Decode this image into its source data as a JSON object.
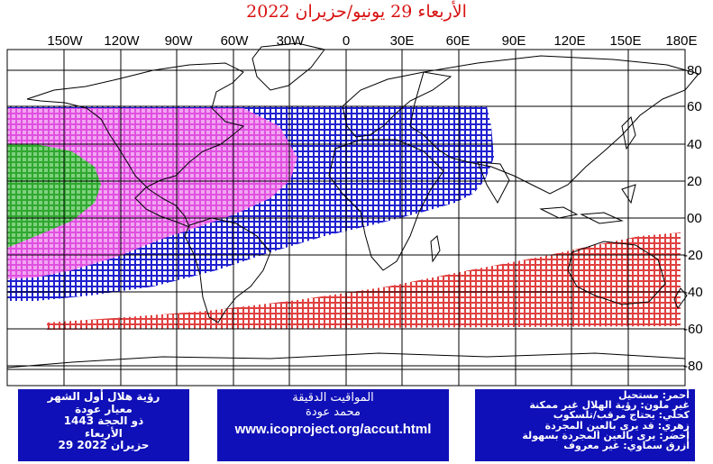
{
  "title": "الأربعاء 29 يونيو/حزيران 2022",
  "map": {
    "lon_labels": [
      "150W",
      "120W",
      "90W",
      "60W",
      "30W",
      "0",
      "30E",
      "60E",
      "90E",
      "120E",
      "150E",
      "180E"
    ],
    "lat_labels": [
      "80",
      "60",
      "40",
      "20",
      "00",
      "-20",
      "-40",
      "-60",
      "-80"
    ],
    "zones": [
      {
        "name": "green",
        "color": "#2fa82f"
      },
      {
        "name": "magenta",
        "color": "#e050e0"
      },
      {
        "name": "blue",
        "color": "#2020d0"
      },
      {
        "name": "red",
        "color": "#e04040"
      }
    ]
  },
  "info_left": {
    "lines": [
      "رؤية هلال أول الشهر",
      "معيار عودة",
      "ذو الحجة 1443",
      "الأربعاء",
      "29 حزيران 2022"
    ]
  },
  "info_mid": {
    "line1": "المواقيت الدقيقة",
    "line2": "محمد عودة",
    "url": "www.icoproject.org/accut.html"
  },
  "legend": {
    "lines": [
      "أحمر: مستحيل",
      "غير ملون: رؤية الهلال غير ممكنة",
      "كحلي: يحتاج مرقب/تلسكوب",
      "زهري: قد يرى بالعين المجردة",
      "أخضر: يرى بالعين المجردة بسهولة",
      "أزرق سماوي: غير معروف"
    ]
  }
}
